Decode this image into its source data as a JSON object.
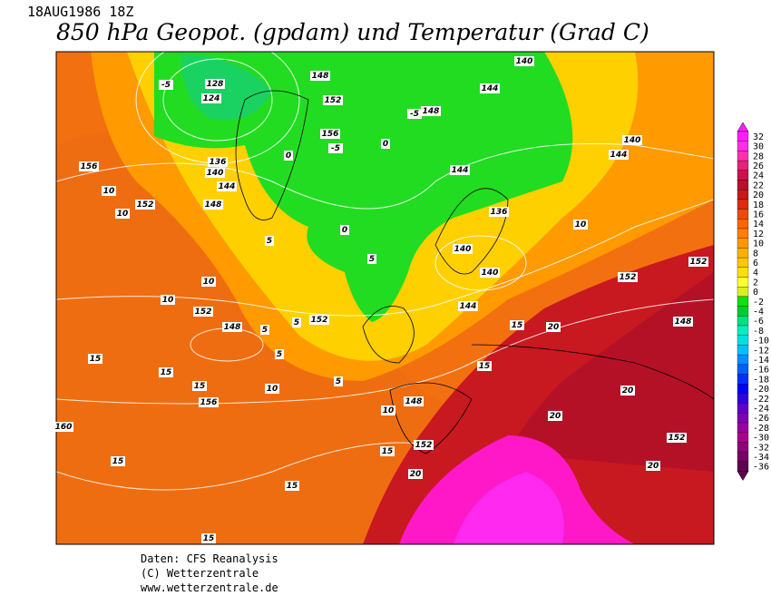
{
  "header": {
    "date": "18AUG1986 18Z",
    "title": "850 hPa Geopot. (gpdam) und  Temperatur (Grad C)"
  },
  "colorbar": {
    "levels": [
      32,
      30,
      28,
      26,
      24,
      22,
      20,
      18,
      16,
      14,
      12,
      10,
      8,
      6,
      4,
      2,
      0,
      -2,
      -4,
      -6,
      -8,
      -10,
      -12,
      -14,
      -16,
      -18,
      -20,
      -22,
      -24,
      -26,
      -28,
      -30,
      -32,
      -34,
      -36
    ],
    "colors": [
      "#ff1cff",
      "#ff2ee0",
      "#ff30b0",
      "#e8207a",
      "#d0104a",
      "#b8102a",
      "#c81818",
      "#e02a10",
      "#f04a08",
      "#ff6400",
      "#ff7e00",
      "#ff9800",
      "#ffb000",
      "#ffc800",
      "#ffe000",
      "#ffff30",
      "#d8f020",
      "#10e010",
      "#00cc30",
      "#00e080",
      "#00f0c0",
      "#00e0e0",
      "#00c0ff",
      "#0090ff",
      "#0060ff",
      "#0030ff",
      "#0000ff",
      "#3000e0",
      "#6000c8",
      "#8000b0",
      "#9a00a0",
      "#a8008c",
      "#90007a",
      "#780066",
      "#600050"
    ]
  },
  "map": {
    "contour_labels": [
      156,
      152,
      10,
      10,
      148,
      140,
      144,
      136,
      124,
      128,
      -5,
      148,
      152,
      156,
      -5,
      148,
      -5,
      144,
      140,
      144,
      140,
      144,
      136,
      140,
      140,
      144,
      152,
      152,
      148,
      148,
      152,
      152,
      156,
      148,
      152,
      152,
      160,
      10,
      10,
      15,
      15,
      15,
      15,
      15,
      15,
      20,
      20,
      20,
      20,
      20,
      15,
      15,
      5,
      5,
      5,
      5,
      10,
      10,
      15,
      10,
      0,
      0,
      0,
      5,
      5
    ]
  },
  "footer": {
    "lines": [
      "Daten: CFS Reanalysis",
      "(C) Wetterzentrale",
      "www.wetterzentrale.de"
    ]
  }
}
